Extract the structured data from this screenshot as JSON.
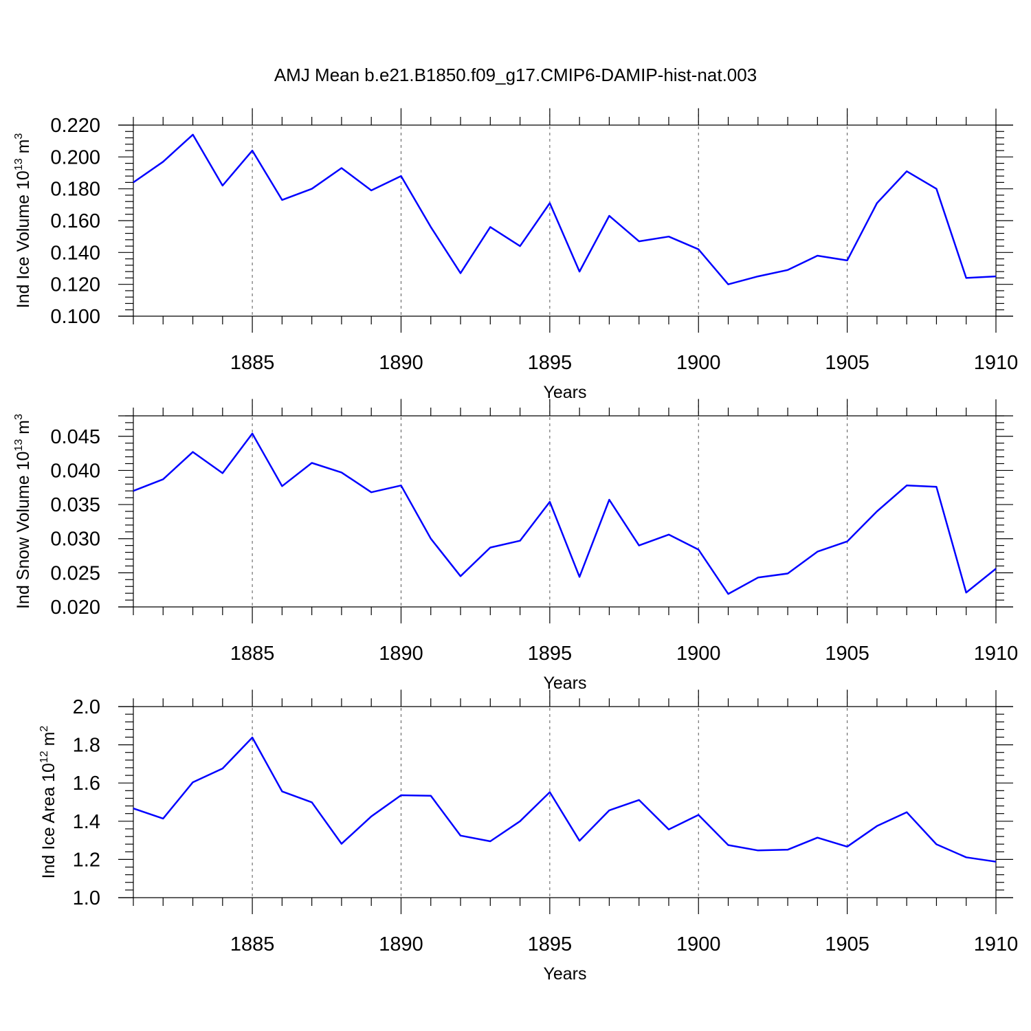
{
  "title": "AMJ Mean b.e21.B1850.f09_g17.CMIP6-DAMIP-hist-nat.003",
  "colors": {
    "series": "#0000ff",
    "axes": "#000000",
    "grid": "#555555"
  },
  "chart_data": [
    {
      "type": "line",
      "ylabel": {
        "base": "Ind Ice Volume 10",
        "exp": "13",
        "unit": " m",
        "unit_exp": "3"
      },
      "xlabel": "Years",
      "xlim": [
        1881,
        1910
      ],
      "ylim": [
        0.1,
        0.22
      ],
      "yticks": [
        0.1,
        0.12,
        0.14,
        0.16,
        0.18,
        0.2,
        0.22
      ],
      "ytick_labels": [
        "0.100",
        "0.120",
        "0.140",
        "0.160",
        "0.180",
        "0.200",
        "0.220"
      ],
      "xticks": [
        1885,
        1890,
        1895,
        1900,
        1905,
        1910
      ],
      "xtick_labels": [
        "1885",
        "1890",
        "1895",
        "1900",
        "1905",
        "1910"
      ],
      "grid": "vertical dashed at labeled years",
      "x": [
        1881,
        1882,
        1883,
        1884,
        1885,
        1886,
        1887,
        1888,
        1889,
        1890,
        1891,
        1892,
        1893,
        1894,
        1895,
        1896,
        1897,
        1898,
        1899,
        1900,
        1901,
        1902,
        1903,
        1904,
        1905,
        1906,
        1907,
        1908,
        1909,
        1910
      ],
      "values": [
        0.184,
        0.197,
        0.214,
        0.182,
        0.204,
        0.173,
        0.18,
        0.193,
        0.179,
        0.188,
        0.156,
        0.127,
        0.156,
        0.144,
        0.171,
        0.128,
        0.163,
        0.147,
        0.15,
        0.142,
        0.12,
        0.125,
        0.129,
        0.138,
        0.135,
        0.171,
        0.191,
        0.18,
        0.124,
        0.125
      ]
    },
    {
      "type": "line",
      "ylabel": {
        "base": "Ind Snow Volume 10",
        "exp": "13",
        "unit": " m",
        "unit_exp": "3"
      },
      "xlabel": "Years",
      "xlim": [
        1881,
        1910
      ],
      "ylim": [
        0.02,
        0.048
      ],
      "yticks": [
        0.02,
        0.025,
        0.03,
        0.035,
        0.04,
        0.045
      ],
      "ytick_labels": [
        "0.020",
        "0.025",
        "0.030",
        "0.035",
        "0.040",
        "0.045"
      ],
      "xticks": [
        1885,
        1890,
        1895,
        1900,
        1905,
        1910
      ],
      "xtick_labels": [
        "1885",
        "1890",
        "1895",
        "1900",
        "1905",
        "1910"
      ],
      "grid": "vertical dashed at labeled years",
      "x": [
        1881,
        1882,
        1883,
        1884,
        1885,
        1886,
        1887,
        1888,
        1889,
        1890,
        1891,
        1892,
        1893,
        1894,
        1895,
        1896,
        1897,
        1898,
        1899,
        1900,
        1901,
        1902,
        1903,
        1904,
        1905,
        1906,
        1907,
        1908,
        1909,
        1910
      ],
      "values": [
        0.037,
        0.0387,
        0.0427,
        0.0396,
        0.0454,
        0.0377,
        0.0411,
        0.0397,
        0.0368,
        0.0378,
        0.03,
        0.0245,
        0.0287,
        0.0297,
        0.0354,
        0.0244,
        0.0357,
        0.029,
        0.0306,
        0.0284,
        0.0219,
        0.0243,
        0.0249,
        0.0281,
        0.0296,
        0.034,
        0.0378,
        0.0376,
        0.0221,
        0.0256
      ]
    },
    {
      "type": "line",
      "ylabel": {
        "base": "Ind Ice Area 10",
        "exp": "12",
        "unit": " m",
        "unit_exp": "2"
      },
      "xlabel": "Years",
      "xlim": [
        1881,
        1910
      ],
      "ylim": [
        1.0,
        2.0
      ],
      "yticks": [
        1.0,
        1.2,
        1.4,
        1.6,
        1.8,
        2.0
      ],
      "ytick_labels": [
        "1.0",
        "1.2",
        "1.4",
        "1.6",
        "1.8",
        "2.0"
      ],
      "xticks": [
        1885,
        1890,
        1895,
        1900,
        1905,
        1910
      ],
      "xtick_labels": [
        "1885",
        "1890",
        "1895",
        "1900",
        "1905",
        "1910"
      ],
      "grid": "vertical dashed at labeled years",
      "x": [
        1881,
        1882,
        1883,
        1884,
        1885,
        1886,
        1887,
        1888,
        1889,
        1890,
        1891,
        1892,
        1893,
        1894,
        1895,
        1896,
        1897,
        1898,
        1899,
        1900,
        1901,
        1902,
        1903,
        1904,
        1905,
        1906,
        1907,
        1908,
        1909,
        1910
      ],
      "values": [
        1.467,
        1.414,
        1.604,
        1.676,
        1.838,
        1.556,
        1.499,
        1.282,
        1.425,
        1.536,
        1.533,
        1.325,
        1.295,
        1.4,
        1.552,
        1.298,
        1.457,
        1.511,
        1.357,
        1.433,
        1.275,
        1.247,
        1.251,
        1.314,
        1.267,
        1.375,
        1.447,
        1.279,
        1.211,
        1.188
      ]
    }
  ]
}
